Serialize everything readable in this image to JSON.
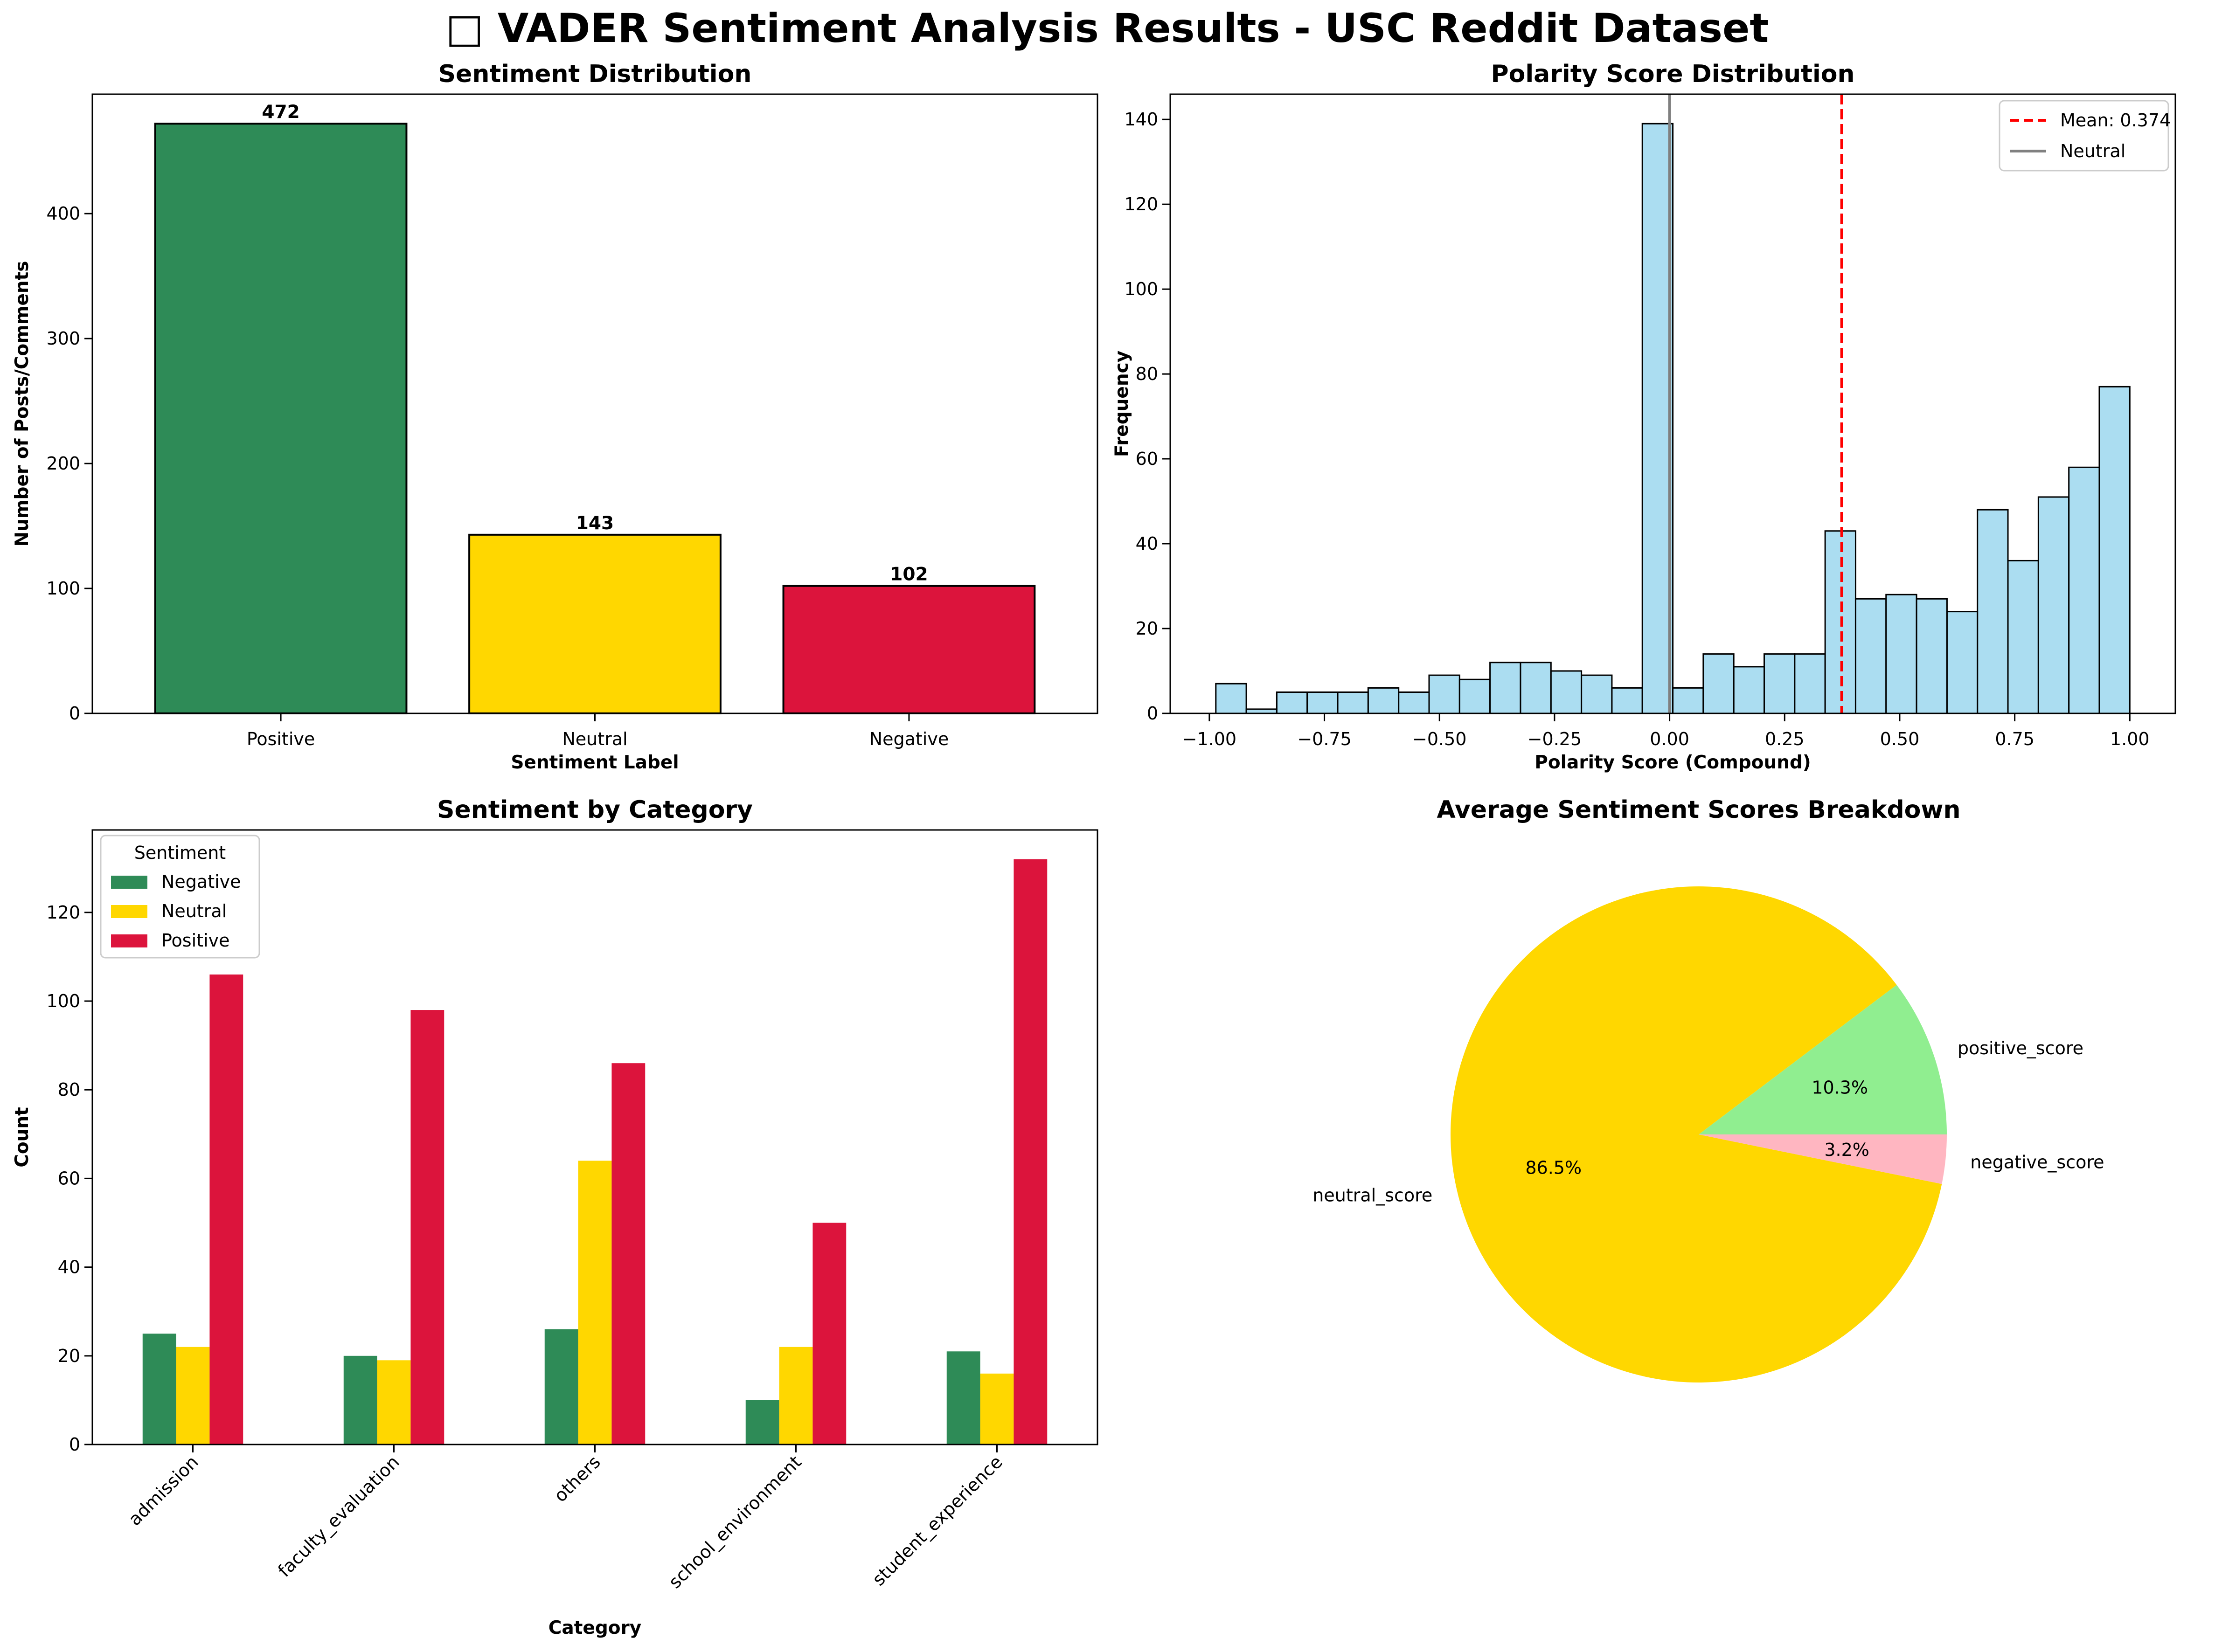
{
  "figure": {
    "title_glyph": "□",
    "title": "VADER Sentiment Analysis Results - USC Reddit Dataset"
  },
  "chart_data": [
    {
      "type": "bar",
      "title": "Sentiment Distribution",
      "xlabel": "Sentiment Label",
      "ylabel": "Number of Posts/Comments",
      "categories": [
        "Positive",
        "Neutral",
        "Negative"
      ],
      "values": [
        472,
        143,
        102
      ],
      "data_labels": [
        "472",
        "143",
        "102"
      ],
      "colors": [
        "#2e8b57",
        "#ffd700",
        "#dc143c"
      ],
      "ylim": [
        0,
        495.6
      ],
      "yticks": [
        0,
        100,
        200,
        300,
        400
      ],
      "grid": false
    },
    {
      "type": "bar",
      "subtype": "histogram",
      "title": "Polarity Score Distribution",
      "xlabel": "Polarity Score (Compound)",
      "ylabel": "Frequency",
      "bins": {
        "start": -0.9859,
        "end": 1.0,
        "count": 30
      },
      "values": [
        7,
        1,
        5,
        5,
        5,
        6,
        5,
        9,
        8,
        12,
        12,
        10,
        9,
        6,
        139,
        6,
        14,
        11,
        14,
        14,
        43,
        27,
        28,
        27,
        24,
        48,
        36,
        51,
        58,
        77
      ],
      "color": "#87ceeb",
      "edge_color": "#000000",
      "xlim": [
        -1.085,
        1.099
      ],
      "ylim": [
        0,
        145.95
      ],
      "xticks": [
        -1.0,
        -0.75,
        -0.5,
        -0.25,
        0.0,
        0.25,
        0.5,
        0.75,
        1.0
      ],
      "xtick_labels": [
        "−1.00",
        "−0.75",
        "−0.50",
        "−0.25",
        "0.00",
        "0.25",
        "0.50",
        "0.75",
        "1.00"
      ],
      "yticks": [
        0,
        20,
        40,
        60,
        80,
        100,
        120,
        140
      ],
      "mean_line": {
        "x": 0.374,
        "label": "Mean: 0.374",
        "color": "#ff0000",
        "style": "dashed"
      },
      "neutral_line": {
        "x": 0.0,
        "label": "Neutral",
        "color": "#808080"
      },
      "legend": "top-right",
      "grid": false
    },
    {
      "type": "bar",
      "subtype": "grouped",
      "title": "Sentiment by Category",
      "xlabel": "Category",
      "ylabel": "Count",
      "categories": [
        "admission",
        "faculty_evaluation",
        "others",
        "school_environment",
        "student_experience"
      ],
      "series": [
        {
          "name": "Negative",
          "values": [
            25,
            20,
            26,
            10,
            21
          ],
          "color": "#2e8b57"
        },
        {
          "name": "Neutral",
          "values": [
            22,
            19,
            64,
            22,
            16
          ],
          "color": "#ffd700"
        },
        {
          "name": "Positive",
          "values": [
            106,
            98,
            86,
            50,
            132
          ],
          "color": "#dc143c"
        }
      ],
      "legend_title": "Sentiment",
      "legend": "top-left",
      "ylim": [
        0,
        138.6
      ],
      "yticks": [
        0,
        20,
        40,
        60,
        80,
        100,
        120
      ],
      "xtick_rotation": 45,
      "grid": false
    },
    {
      "type": "pie",
      "title": "Average Sentiment Scores Breakdown",
      "labels": [
        "positive_score",
        "neutral_score",
        "negative_score"
      ],
      "values": [
        10.3,
        86.5,
        3.2
      ],
      "pct_labels": [
        "10.3%",
        "86.5%",
        "3.2%"
      ],
      "colors": [
        "#90ee90",
        "#ffd700",
        "#ffb6c1"
      ]
    }
  ]
}
